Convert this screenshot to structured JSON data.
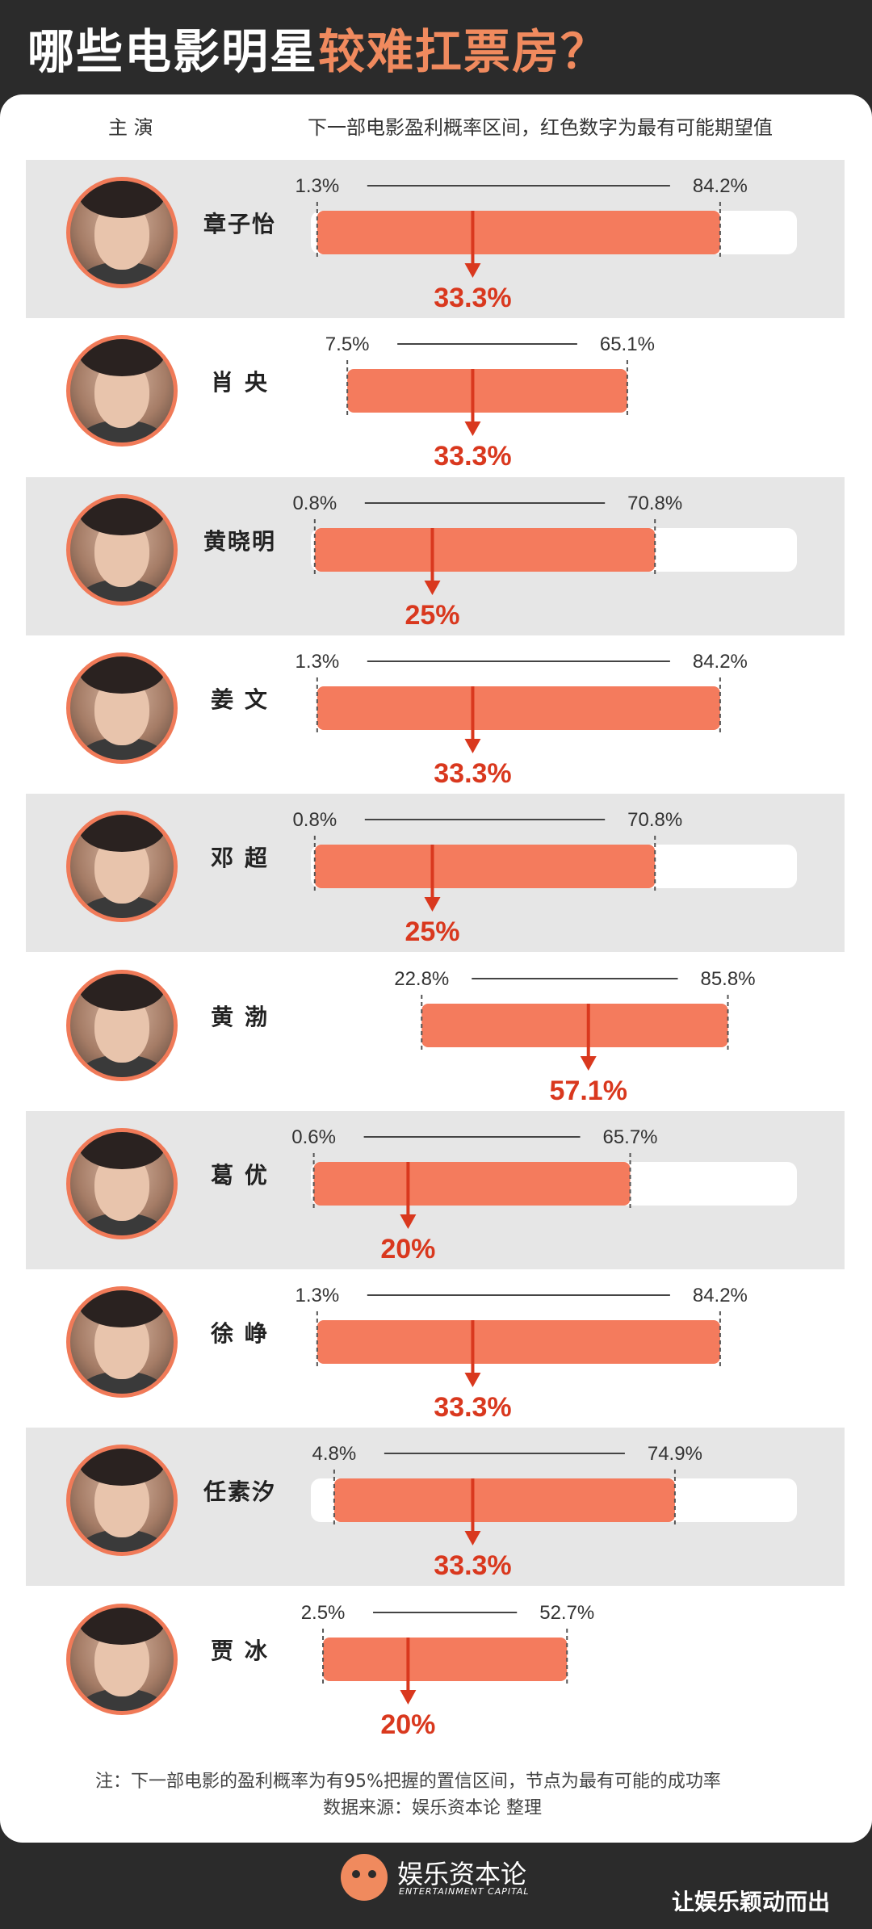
{
  "title": {
    "part1": "哪些电影明星",
    "part2": "较难扛票房？"
  },
  "header": {
    "main_actor": "主 演",
    "description": "下一部电影盈利概率区间，红色数字为最有可能期望值"
  },
  "chart_data": {
    "type": "bar",
    "xlim": [
      0,
      100
    ],
    "columns": [
      "主 演",
      "下一部电影盈利概率区间，红色数字为最有可能期望值"
    ],
    "rows": [
      {
        "name": "章子怡",
        "low": 1.3,
        "high": 84.2,
        "expected": 33.3,
        "low_label": "1.3%",
        "high_label": "84.2%",
        "expected_label": "33.3%"
      },
      {
        "name": "肖 央",
        "low": 7.5,
        "high": 65.1,
        "expected": 33.3,
        "low_label": "7.5%",
        "high_label": "65.1%",
        "expected_label": "33.3%"
      },
      {
        "name": "黄晓明",
        "low": 0.8,
        "high": 70.8,
        "expected": 25,
        "low_label": "0.8%",
        "high_label": "70.8%",
        "expected_label": "25%"
      },
      {
        "name": "姜 文",
        "low": 1.3,
        "high": 84.2,
        "expected": 33.3,
        "low_label": "1.3%",
        "high_label": "84.2%",
        "expected_label": "33.3%"
      },
      {
        "name": "邓 超",
        "low": 0.8,
        "high": 70.8,
        "expected": 25,
        "low_label": "0.8%",
        "high_label": "70.8%",
        "expected_label": "25%"
      },
      {
        "name": "黄 渤",
        "low": 22.8,
        "high": 85.8,
        "expected": 57.1,
        "low_label": "22.8%",
        "high_label": "85.8%",
        "expected_label": "57.1%"
      },
      {
        "name": "葛 优",
        "low": 0.6,
        "high": 65.7,
        "expected": 20,
        "low_label": "0.6%",
        "high_label": "65.7%",
        "expected_label": "20%"
      },
      {
        "name": "徐 峥",
        "low": 1.3,
        "high": 84.2,
        "expected": 33.3,
        "low_label": "1.3%",
        "high_label": "84.2%",
        "expected_label": "33.3%"
      },
      {
        "name": "任素汐",
        "low": 4.8,
        "high": 74.9,
        "expected": 33.3,
        "low_label": "4.8%",
        "high_label": "74.9%",
        "expected_label": "33.3%"
      },
      {
        "name": "贾 冰",
        "low": 2.5,
        "high": 52.7,
        "expected": 20,
        "low_label": "2.5%",
        "high_label": "52.7%",
        "expected_label": "20%"
      }
    ]
  },
  "notes": {
    "note1": "注：下一部电影的盈利概率为有95%把握的置信区间，节点为最有可能的成功率",
    "note2": "数据来源：娱乐资本论 整理"
  },
  "logo": {
    "cn": "娱乐资本论",
    "en": "ENTERTAINMENT CAPITAL"
  },
  "footer": {
    "tag": "让娱乐颖动而出"
  },
  "colors": {
    "bar": "#f47b5d",
    "accent": "#d9381e",
    "shade": "#e6e6e6",
    "dark_bg": "#2b2b2b",
    "title_accent": "#f08a5e"
  }
}
